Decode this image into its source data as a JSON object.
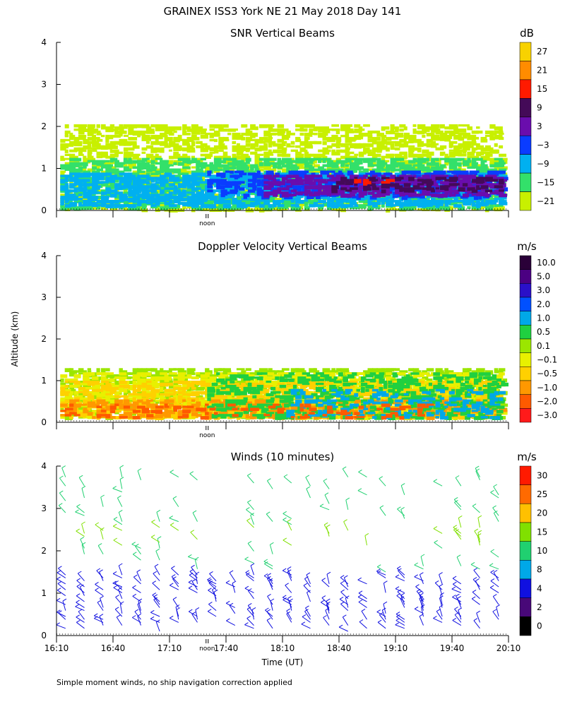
{
  "page": {
    "title": "GRAINEX ISS3 York NE  21 May 2018 Day 141",
    "ylabel": "Altitude (km)",
    "xlabel": "Time (UT)",
    "footnote": "Simple moment winds, no ship navigation correction applied",
    "noon_label": "noon"
  },
  "time_axis": {
    "ticks": [
      "16:10",
      "16:40",
      "17:10",
      "17:40",
      "18:10",
      "18:40",
      "19:10",
      "19:40",
      "20:10"
    ],
    "tick_hours": [
      16.167,
      16.667,
      17.167,
      17.667,
      18.167,
      18.667,
      19.167,
      19.667,
      20.167
    ],
    "range_hours": [
      16.167,
      20.167
    ],
    "noon_local_hour": 17.5
  },
  "alt_axis": {
    "ticks": [
      "0",
      "1",
      "2",
      "3",
      "4"
    ],
    "range_km": [
      0,
      4
    ]
  },
  "chart_data": [
    {
      "type": "heatmap",
      "title": "SNR Vertical Beams",
      "unit": "dB",
      "ylabel": "Altitude (km)",
      "colorbar": {
        "labels": [
          "27",
          "21",
          "15",
          "9",
          "3",
          "−3",
          "−9",
          "−15",
          "−21"
        ],
        "colors": [
          "#f8d200",
          "#ff8c00",
          "#ff1a00",
          "#440a58",
          "#6a0dad",
          "#0a3cff",
          "#00b0f0",
          "#33e06a",
          "#c8f000"
        ]
      },
      "layers": [
        {
          "label": "−21",
          "t": [
            16.2,
            20.1
          ],
          "z": [
            0.0,
            2.05
          ],
          "density": 0.45
        },
        {
          "label": "−15",
          "t": [
            16.2,
            20.1
          ],
          "z": [
            0.05,
            1.25
          ],
          "density": 0.5
        },
        {
          "label": "−9",
          "t": [
            16.2,
            20.1
          ],
          "z": [
            0.1,
            0.9
          ],
          "density": 0.55
        },
        {
          "label": "−3",
          "t": [
            17.5,
            20.1
          ],
          "z": [
            0.3,
            0.95
          ],
          "density": 0.5
        },
        {
          "label": "3",
          "t": [
            18.0,
            20.1
          ],
          "z": [
            0.35,
            0.85
          ],
          "density": 0.55
        },
        {
          "label": "9",
          "t": [
            18.6,
            20.1
          ],
          "z": [
            0.45,
            0.8
          ],
          "density": 0.35
        },
        {
          "label": "15",
          "t": [
            18.8,
            19.1
          ],
          "z": [
            0.6,
            0.75
          ],
          "density": 0.3
        }
      ]
    },
    {
      "type": "heatmap",
      "title": "Doppler Velocity Vertical Beams",
      "unit": "m/s",
      "ylabel": "Altitude (km)",
      "colorbar": {
        "labels": [
          "10.0",
          "5.0",
          "3.0",
          "2.0",
          "1.0",
          "0.5",
          "0.1",
          "−0.1",
          "−0.5",
          "−1.0",
          "−2.0",
          "−3.0"
        ],
        "colors": [
          "#2a0038",
          "#4b0082",
          "#2a10c8",
          "#0050ff",
          "#00a8e8",
          "#20d040",
          "#9be600",
          "#e8f000",
          "#ffd000",
          "#ff9800",
          "#ff5a00",
          "#ff1a1a"
        ]
      },
      "layers": [
        {
          "label": "0.1",
          "t": [
            16.2,
            20.1
          ],
          "z": [
            0.1,
            1.3
          ],
          "density": 0.5
        },
        {
          "label": "−0.1",
          "t": [
            16.2,
            20.1
          ],
          "z": [
            0.1,
            1.2
          ],
          "density": 0.45
        },
        {
          "label": "−0.5",
          "t": [
            16.2,
            20.1
          ],
          "z": [
            0.1,
            1.0
          ],
          "density": 0.4
        },
        {
          "label": "−1.0",
          "t": [
            16.2,
            20.1
          ],
          "z": [
            0.1,
            0.5
          ],
          "density": 0.35
        },
        {
          "label": "0.5",
          "t": [
            17.5,
            20.1
          ],
          "z": [
            0.1,
            1.2
          ],
          "density": 0.3
        },
        {
          "label": "1.0",
          "t": [
            18.2,
            20.1
          ],
          "z": [
            0.1,
            0.8
          ],
          "density": 0.2
        },
        {
          "label": "−2.0",
          "t": [
            16.2,
            19.5
          ],
          "z": [
            0.1,
            0.4
          ],
          "density": 0.15
        }
      ]
    },
    {
      "type": "scatter",
      "title": "Winds (10 minutes)",
      "unit": "m/s",
      "ylabel": "Altitude (km)",
      "colorbar": {
        "labels": [
          "30",
          "25",
          "20",
          "15",
          "10",
          "8",
          "4",
          "2",
          "0"
        ],
        "colors": [
          "#ff1a00",
          "#ff6a00",
          "#ffc000",
          "#80e000",
          "#20d070",
          "#00a8e8",
          "#1010e0",
          "#480878",
          "#000000"
        ]
      },
      "profiles_every_minutes": 10,
      "altitude_range_km": [
        0.1,
        3.8
      ],
      "speed_by_altitude_m_s": [
        {
          "z": [
            0.0,
            1.5
          ],
          "speed": 4
        },
        {
          "z": [
            1.5,
            2.1
          ],
          "speed": 10
        },
        {
          "z": [
            2.1,
            2.6
          ],
          "speed": 15
        },
        {
          "z": [
            2.6,
            3.8
          ],
          "speed": 10
        }
      ]
    }
  ]
}
